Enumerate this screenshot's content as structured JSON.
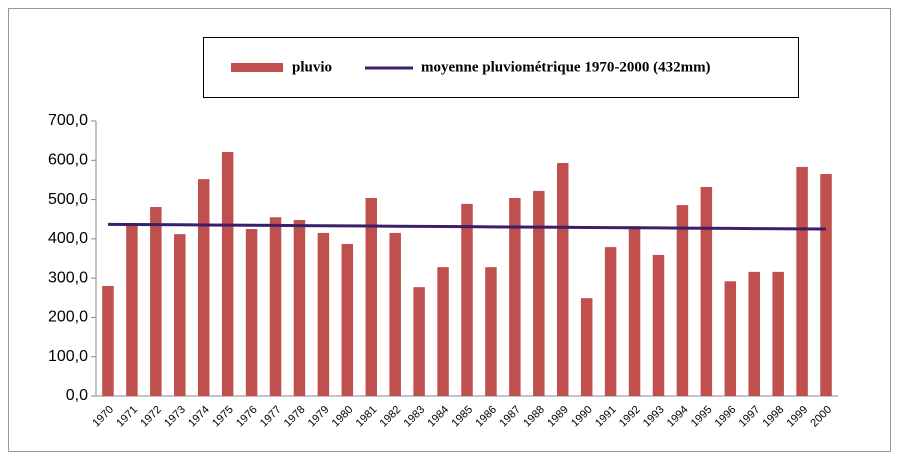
{
  "chart_data": {
    "type": "bar",
    "categories": [
      "1970",
      "1971",
      "1972",
      "1973",
      "1974",
      "1975",
      "1976",
      "1977",
      "1978",
      "1979",
      "1980",
      "1981",
      "1982",
      "1983",
      "1984",
      "1985",
      "1986",
      "1987",
      "1988",
      "1989",
      "1990",
      "1991",
      "1992",
      "1993",
      "1994",
      "1995",
      "1996",
      "1997",
      "1998",
      "1999",
      "2000"
    ],
    "series": [
      {
        "name": "pluvio",
        "type": "bar",
        "color": "#c0504d",
        "values": [
          280,
          435,
          481,
          412,
          552,
          621,
          425,
          455,
          448,
          415,
          387,
          504,
          415,
          277,
          328,
          489,
          328,
          504,
          522,
          593,
          249,
          379,
          432,
          359,
          486,
          532,
          292,
          316,
          316,
          583,
          565
        ]
      },
      {
        "name": "moyenne pluviométrique 1970-2000 (432mm)",
        "type": "line",
        "color": "#3b1f6b",
        "values": [
          437,
          436.6,
          436.2,
          435.8,
          435.4,
          435,
          434.6,
          434.2,
          433.8,
          433.4,
          433,
          432.6,
          432.2,
          431.8,
          431.4,
          431,
          430.6,
          430.2,
          429.8,
          429.4,
          429,
          428.6,
          428.2,
          427.8,
          427.4,
          427,
          426.6,
          426.2,
          425.8,
          425.4,
          425
        ]
      }
    ],
    "ylim": [
      0,
      700
    ],
    "yticks": [
      {
        "value": 0,
        "label": "0,0"
      },
      {
        "value": 100,
        "label": "100,0"
      },
      {
        "value": 200,
        "label": "200,0"
      },
      {
        "value": 300,
        "label": "300,0"
      },
      {
        "value": 400,
        "label": "400,0"
      },
      {
        "value": 500,
        "label": "500,0"
      },
      {
        "value": 600,
        "label": "600,0"
      },
      {
        "value": 700,
        "label": "700,0"
      }
    ],
    "grid": false,
    "legend": "top"
  }
}
